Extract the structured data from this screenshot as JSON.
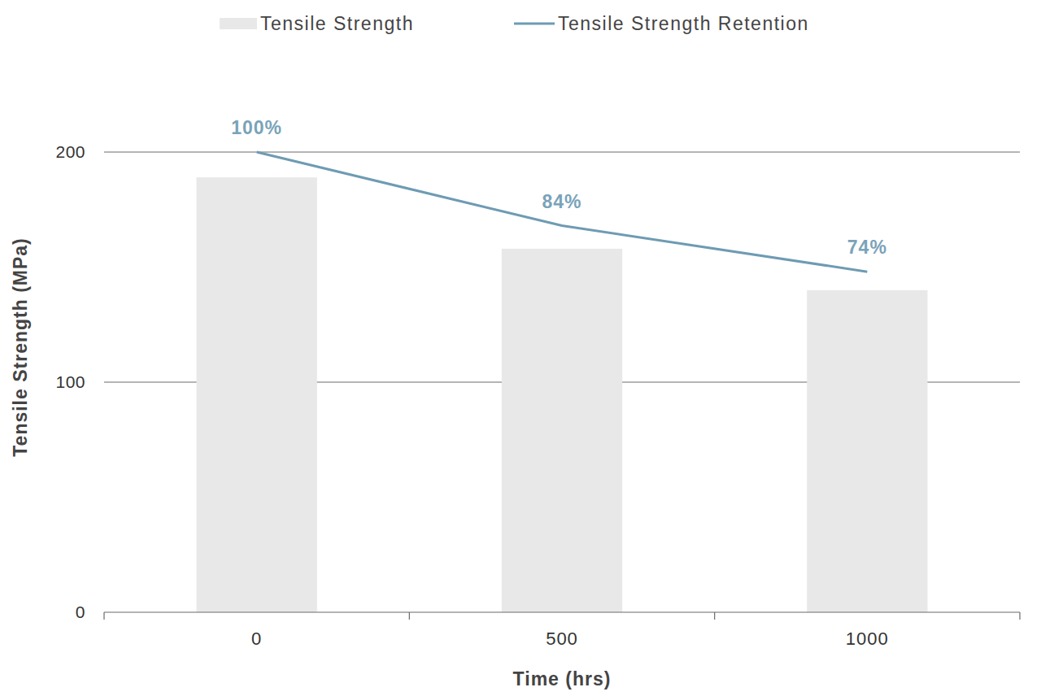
{
  "chart_data": {
    "type": "bar",
    "categories": [
      "0",
      "500",
      "1000"
    ],
    "series": [
      {
        "name": "Tensile Strength",
        "type": "bar",
        "color": "#e8e8e8",
        "values": [
          189,
          158,
          140
        ]
      },
      {
        "name": "Tensile Strength Retention",
        "type": "line",
        "axis": "y2",
        "color": "#6e9bb3",
        "values": [
          100,
          84,
          74
        ],
        "value_labels": [
          "100%",
          "84%",
          "74%"
        ],
        "data_labels": true
      }
    ],
    "x_label": "Time (hrs)",
    "y_label": "Tensile Strength (MPa)",
    "ylim": [
      0,
      200
    ],
    "yticks": [
      0,
      100,
      200
    ],
    "y2lim": [
      0,
      100
    ],
    "grid": true,
    "legend": "top"
  }
}
